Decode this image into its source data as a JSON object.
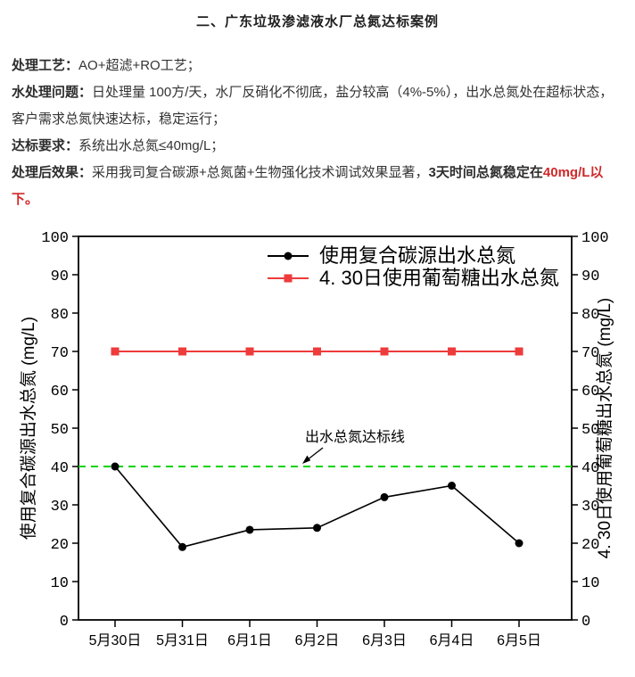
{
  "title": "二、广东垃圾渗滤液水厂总氮达标案例",
  "paragraphs": [
    {
      "label": "处理工艺：",
      "text": "AO+超滤+RO工艺；"
    },
    {
      "label": "水处理问题：",
      "text": "日处理量 100方/天，水厂反硝化不彻底，盐分较高（4%-5%），出水总氮处在超标状态，客户需求总氮快速达标，稳定运行；"
    },
    {
      "label": "达标要求：",
      "text": "系统出水总氮≤40mg/L；"
    },
    {
      "label": "处理后效果：",
      "text": "采用我司复合碳源+总氮菌+生物强化技术调试效果显著，",
      "bold_text": "3天时间总氮稳定在",
      "red_text": "40mg/L以下。"
    }
  ],
  "colors": {
    "title_text": "#1f1f1f",
    "body_text": "#333333",
    "highlight_red": "#d02929",
    "series_black": "#000000",
    "series_red": "#ee3b3b",
    "limit_green": "#00d400",
    "axis": "#000000"
  },
  "chart_data": {
    "type": "line",
    "categories": [
      "5月30日",
      "5月31日",
      "6月1日",
      "6月2日",
      "6月3日",
      "6月4日",
      "6月5日"
    ],
    "series": [
      {
        "name": "使用复合碳源出水总氮",
        "marker": "circle",
        "color": "#000000",
        "values": [
          40,
          19,
          23.5,
          24,
          32,
          35,
          20
        ]
      },
      {
        "name": "4. 30日使用葡萄糖出水总氮",
        "marker": "square",
        "color": "#ee3b3b",
        "values": [
          70,
          70,
          70,
          70,
          70,
          70,
          70
        ]
      }
    ],
    "ylabel_left": "使用复合碳源出水总氮 (mg/L)",
    "ylabel_right": "4. 30日使用葡萄糖出水总氮 (mg/L)",
    "ylim": [
      0,
      100
    ],
    "ytick_step": 10,
    "grid": false,
    "legend_position": "top-center-inside",
    "reference_line": {
      "value": 40,
      "color": "#00d400",
      "style": "dashed",
      "label": "出水总氮达标线"
    }
  }
}
